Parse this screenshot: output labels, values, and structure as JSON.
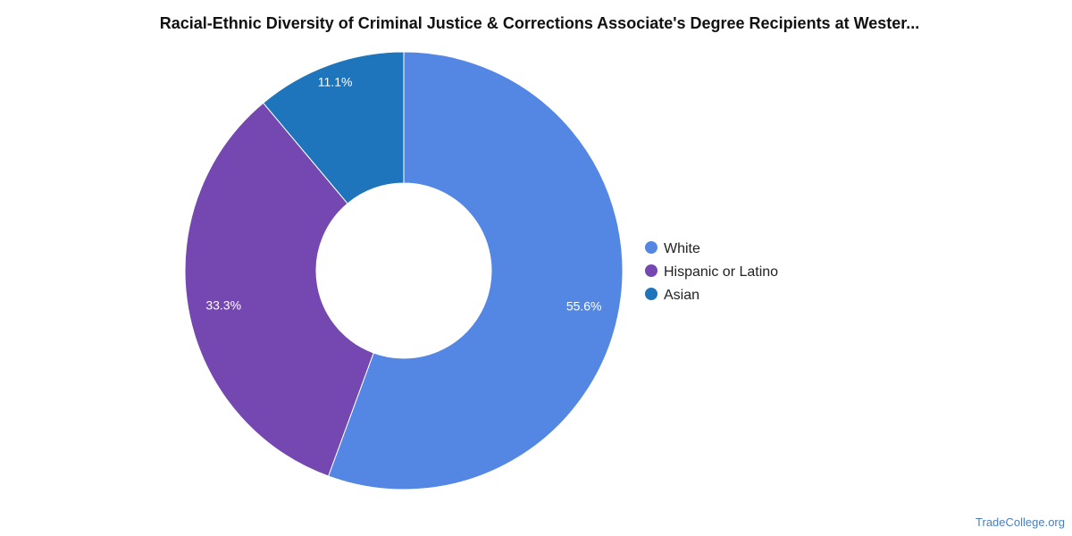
{
  "chart_data": {
    "type": "pie",
    "title": "Racial-Ethnic Diversity of Criminal Justice & Corrections Associate's Degree Recipients at Wester...",
    "donut": true,
    "categories": [
      "White",
      "Hispanic or Latino",
      "Asian"
    ],
    "values": [
      55.6,
      33.3,
      11.1
    ],
    "labels": [
      "55.6%",
      "33.3%",
      "11.1%"
    ],
    "colors": [
      "#5387e3",
      "#7448b0",
      "#1f75bb"
    ],
    "legend_position": "right"
  },
  "watermark": "TradeCollege.org"
}
